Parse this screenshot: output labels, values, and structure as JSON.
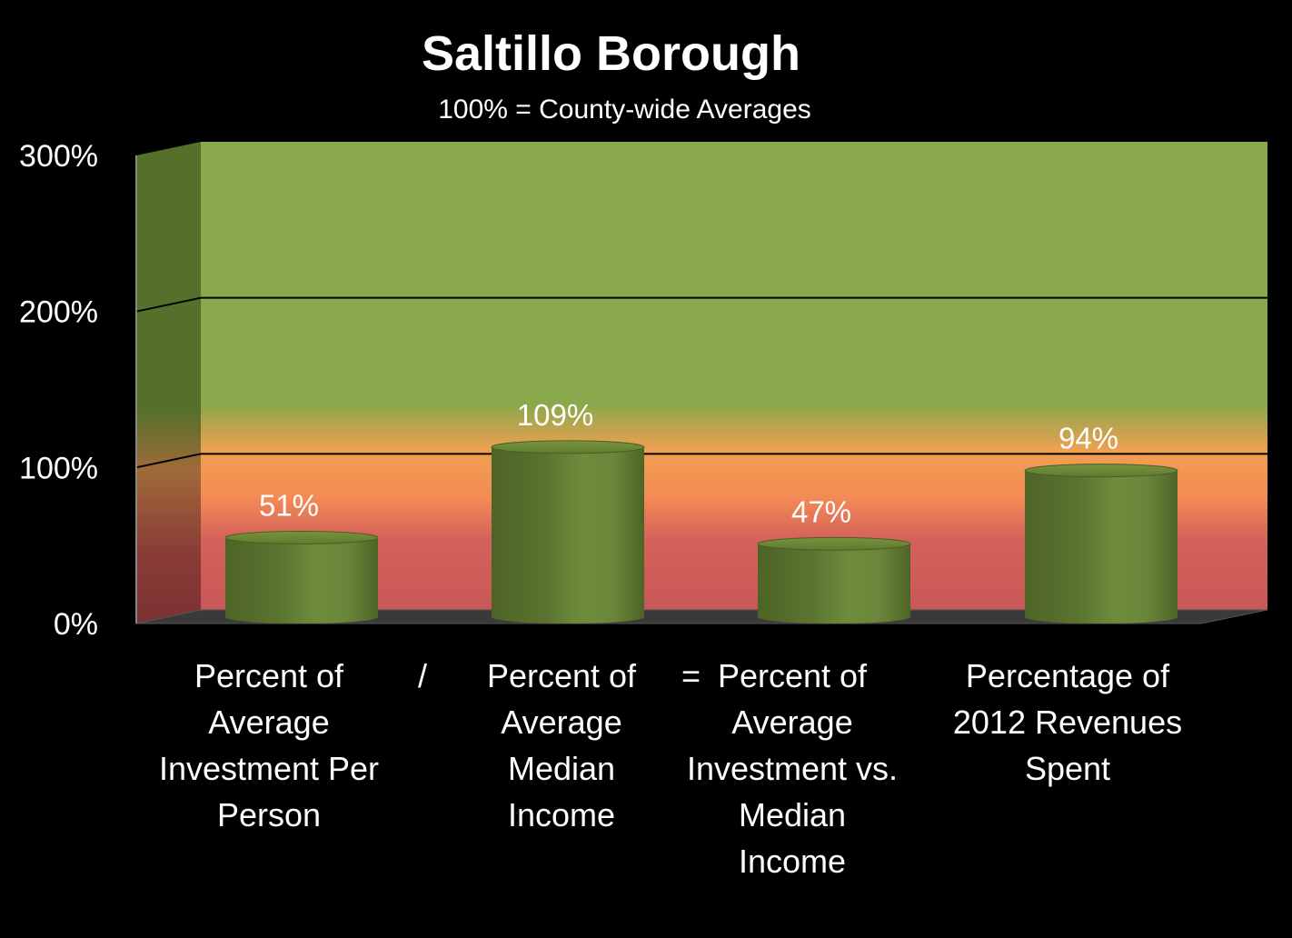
{
  "chart_data": {
    "type": "bar",
    "title": "Saltillo Borough",
    "subtitle": "100% = County-wide Averages",
    "categories": [
      "Percent of\nAverage\nInvestment Per\nPerson",
      "Percent of\nAverage\nMedian\nIncome",
      "Percent of\nAverage\nInvestment vs.\nMedian\nIncome",
      "Percentage of\n2012 Revenues\nSpent"
    ],
    "values": [
      51,
      109,
      47,
      94
    ],
    "data_labels": [
      "51%",
      "109%",
      "47%",
      "94%"
    ],
    "operators": [
      "/",
      "="
    ],
    "yticks": [
      "0%",
      "100%",
      "200%",
      "300%"
    ],
    "ylim": [
      0,
      300
    ],
    "grid": true,
    "legend": "none"
  },
  "colors": {
    "background": "#000000",
    "bar": "#5f7a30",
    "zone_high": "#8aa84c",
    "zone_mid": "#f79a4e",
    "zone_low": "#c85858"
  }
}
